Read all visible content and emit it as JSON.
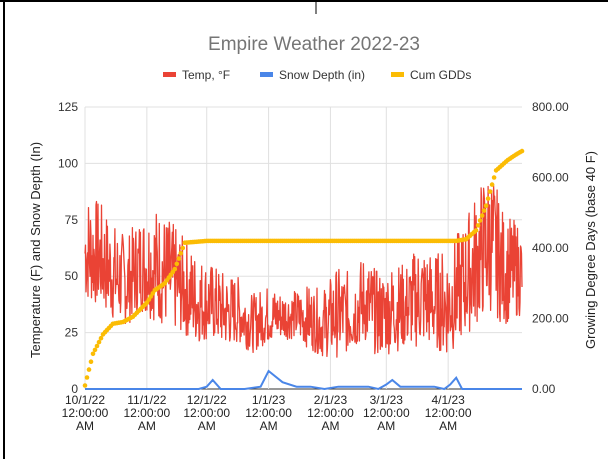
{
  "chart_data": {
    "type": "line",
    "title": "Empire Weather 2022-23",
    "ylabel": "Temperature (F) and Snow Depth (In)",
    "y2label": "Growing Degree Days (base 40 F)",
    "xlabel": "",
    "ylim": [
      0,
      125
    ],
    "y2lim": [
      0,
      800
    ],
    "yticks": [
      "0",
      "25",
      "50",
      "75",
      "100",
      "125"
    ],
    "y2ticks": [
      "0.00",
      "200.00",
      "400.00",
      "600.00",
      "800.00"
    ],
    "x_range": [
      "2022-10-01",
      "2023-05-08"
    ],
    "xtick_dates": [
      "2022-10-01",
      "2022-11-01",
      "2022-12-01",
      "2023-01-01",
      "2023-02-01",
      "2023-03-01",
      "2023-04-01"
    ],
    "xtick_labels": [
      [
        "10/1/22",
        "12:00:00",
        "AM"
      ],
      [
        "11/1/22",
        "12:00:00",
        "AM"
      ],
      [
        "12/1/22",
        "12:00:00",
        "AM"
      ],
      [
        "1/1/23",
        "12:00:00",
        "AM"
      ],
      [
        "2/1/23",
        "12:00:00",
        "AM"
      ],
      [
        "3/1/23",
        "12:00:00",
        "AM"
      ],
      [
        "4/1/23",
        "12:00:00",
        "AM"
      ]
    ],
    "grid": true,
    "legend_position": "top",
    "series": [
      {
        "name": "Temp, °F",
        "axis": "left",
        "style": "line",
        "color": "#ea4335",
        "x": [
          "2022-10-01",
          "2022-10-08",
          "2022-10-15",
          "2022-10-22",
          "2022-10-29",
          "2022-11-05",
          "2022-11-12",
          "2022-11-19",
          "2022-11-26",
          "2022-12-03",
          "2022-12-10",
          "2022-12-17",
          "2022-12-24",
          "2022-12-31",
          "2023-01-07",
          "2023-01-14",
          "2023-01-21",
          "2023-01-28",
          "2023-02-04",
          "2023-02-11",
          "2023-02-18",
          "2023-02-25",
          "2023-03-04",
          "2023-03-11",
          "2023-03-18",
          "2023-03-25",
          "2023-04-01",
          "2023-04-08",
          "2023-04-15",
          "2023-04-22",
          "2023-04-29",
          "2023-05-06"
        ],
        "low": [
          38,
          36,
          30,
          28,
          34,
          30,
          26,
          24,
          20,
          22,
          18,
          20,
          16,
          20,
          22,
          22,
          18,
          14,
          14,
          16,
          20,
          14,
          16,
          18,
          18,
          18,
          14,
          22,
          28,
          34,
          28,
          32
        ],
        "high": [
          88,
          84,
          74,
          68,
          78,
          82,
          76,
          68,
          60,
          56,
          52,
          50,
          42,
          46,
          44,
          44,
          46,
          44,
          54,
          52,
          60,
          52,
          56,
          56,
          66,
          60,
          64,
          72,
          88,
          100,
          78,
          74
        ]
      },
      {
        "name": "Snow Depth (in)",
        "axis": "left",
        "style": "line",
        "color": "#4a86e8",
        "x": [
          "2022-10-01",
          "2022-11-27",
          "2022-12-01",
          "2022-12-04",
          "2022-12-08",
          "2022-12-12",
          "2022-12-15",
          "2022-12-20",
          "2022-12-28",
          "2023-01-01",
          "2023-01-08",
          "2023-01-15",
          "2023-01-22",
          "2023-01-29",
          "2023-02-05",
          "2023-02-12",
          "2023-02-20",
          "2023-02-25",
          "2023-03-01",
          "2023-03-04",
          "2023-03-08",
          "2023-03-15",
          "2023-03-25",
          "2023-03-30",
          "2023-04-02",
          "2023-04-05",
          "2023-04-08",
          "2023-05-08"
        ],
        "values": [
          0,
          0,
          1,
          4,
          0,
          0,
          0,
          0,
          1,
          8,
          3,
          1,
          1,
          0,
          1,
          1,
          1,
          0,
          2,
          4,
          1,
          1,
          1,
          0,
          2,
          5,
          0,
          0
        ]
      },
      {
        "name": "Cum GDDs",
        "axis": "right",
        "style": "dots",
        "color": "#fbbc04",
        "x": [
          "2022-10-01",
          "2022-10-05",
          "2022-10-10",
          "2022-10-15",
          "2022-10-20",
          "2022-10-25",
          "2022-11-01",
          "2022-11-05",
          "2022-11-10",
          "2022-11-15",
          "2022-11-20",
          "2022-12-01",
          "2022-12-31",
          "2023-01-31",
          "2023-02-28",
          "2023-03-31",
          "2023-04-05",
          "2023-04-10",
          "2023-04-15",
          "2023-04-20",
          "2023-04-25",
          "2023-05-01",
          "2023-05-05",
          "2023-05-08"
        ],
        "values": [
          10,
          100,
          155,
          185,
          190,
          205,
          245,
          280,
          300,
          340,
          415,
          420,
          420,
          420,
          420,
          420,
          420,
          425,
          450,
          520,
          620,
          650,
          665,
          675
        ]
      }
    ]
  }
}
